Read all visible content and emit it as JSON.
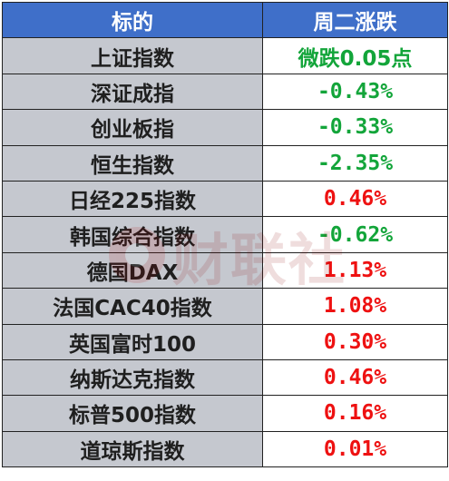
{
  "header": {
    "col1": "标的",
    "col2": "周二涨跌"
  },
  "colors": {
    "header_bg": "#3f6fc9",
    "name_bg": "#c5c8cf",
    "up": "#ee1111",
    "down": "#13a53a"
  },
  "rows": [
    {
      "name": "上证指数",
      "change": "微跌0.05点",
      "direction": "down"
    },
    {
      "name": "深证成指",
      "change": "-0.43%",
      "direction": "down"
    },
    {
      "name": "创业板指",
      "change": "-0.33%",
      "direction": "down"
    },
    {
      "name": "恒生指数",
      "change": "-2.35%",
      "direction": "down"
    },
    {
      "name": "日经225指数",
      "change": "0.46%",
      "direction": "up"
    },
    {
      "name": "韩国综合指数",
      "change": "-0.62%",
      "direction": "down"
    },
    {
      "name": "德国DAX",
      "change": "1.13%",
      "direction": "up"
    },
    {
      "name": "法国CAC40指数",
      "change": "1.08%",
      "direction": "up"
    },
    {
      "name": "英国富时100",
      "change": "0.30%",
      "direction": "up"
    },
    {
      "name": "纳斯达克指数",
      "change": "0.46%",
      "direction": "up"
    },
    {
      "name": "标普500指数",
      "change": "0.16%",
      "direction": "up"
    },
    {
      "name": "道琼斯指数",
      "change": "0.01%",
      "direction": "up"
    }
  ],
  "watermark": {
    "text": "财联社"
  }
}
